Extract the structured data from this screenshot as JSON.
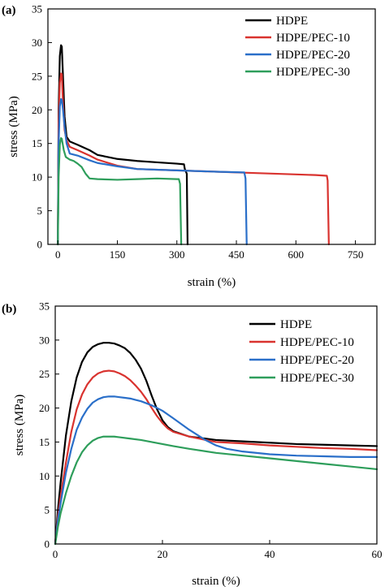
{
  "chart_data": [
    {
      "type": "line",
      "panel_label": "(a)",
      "xlabel": "strain (%)",
      "ylabel": "stress (MPa)",
      "xlim": [
        -25,
        800
      ],
      "ylim": [
        0,
        35
      ],
      "xticks": [
        0,
        150,
        300,
        450,
        600,
        750
      ],
      "yticks": [
        0,
        5,
        10,
        15,
        20,
        25,
        30,
        35
      ],
      "legend_position": "top-right",
      "grid": false,
      "series": [
        {
          "name": "HDPE",
          "color": "#000000",
          "x": [
            0,
            2,
            5,
            8,
            10,
            13,
            17,
            22,
            30,
            50,
            80,
            100,
            150,
            200,
            250,
            300,
            318,
            320,
            325,
            327
          ],
          "y": [
            0,
            20,
            28,
            29.6,
            29.4,
            25,
            19,
            16,
            15.3,
            14.8,
            14,
            13.3,
            12.7,
            12.4,
            12.2,
            12,
            11.9,
            11.2,
            10.5,
            0
          ]
        },
        {
          "name": "HDPE/PEC-10",
          "color": "#d9332f",
          "x": [
            0,
            2,
            5,
            8,
            10,
            13,
            17,
            22,
            30,
            50,
            80,
            100,
            150,
            200,
            300,
            400,
            500,
            600,
            650,
            678,
            680,
            683
          ],
          "y": [
            0,
            18,
            24,
            25.4,
            25.3,
            21,
            17,
            15.5,
            14.5,
            14,
            13.2,
            12.6,
            11.7,
            11.2,
            11,
            10.8,
            10.6,
            10.4,
            10.3,
            10.2,
            9.5,
            0
          ]
        },
        {
          "name": "HDPE/PEC-20",
          "color": "#2a6fc9",
          "x": [
            0,
            2,
            5,
            8,
            10,
            13,
            17,
            22,
            30,
            50,
            80,
            100,
            150,
            200,
            300,
            400,
            470,
            473,
            476
          ],
          "y": [
            0,
            15,
            20.5,
            21.6,
            21.5,
            20,
            17.5,
            15,
            13.5,
            13.2,
            12.5,
            12.1,
            11.6,
            11.2,
            11,
            10.8,
            10.7,
            9.8,
            0
          ]
        },
        {
          "name": "HDPE/PEC-30",
          "color": "#2e9e5b",
          "x": [
            0,
            2,
            5,
            8,
            10,
            15,
            20,
            30,
            40,
            50,
            60,
            70,
            80,
            100,
            150,
            200,
            250,
            300,
            305,
            308,
            311
          ],
          "y": [
            0,
            10,
            14.8,
            15.8,
            15.7,
            14,
            13,
            12.6,
            12.4,
            12,
            11.5,
            10.5,
            9.8,
            9.7,
            9.6,
            9.7,
            9.8,
            9.7,
            9.7,
            9,
            0
          ]
        }
      ]
    },
    {
      "type": "line",
      "panel_label": "(b)",
      "xlabel": "strain (%)",
      "ylabel": "stress (MPa)",
      "xlim": [
        0,
        60
      ],
      "ylim": [
        0,
        35
      ],
      "xticks": [
        0,
        20,
        40,
        60
      ],
      "yticks": [
        0,
        5,
        10,
        15,
        20,
        25,
        30,
        35
      ],
      "legend_position": "top-right",
      "grid": false,
      "series": [
        {
          "name": "HDPE",
          "color": "#000000",
          "x": [
            0,
            0.5,
            1,
            2,
            3,
            4,
            5,
            6,
            7,
            8,
            9,
            10,
            11,
            12,
            13,
            14,
            15,
            16,
            17,
            18,
            19,
            20,
            21,
            22,
            25,
            30,
            35,
            40,
            45,
            50,
            55,
            60
          ],
          "y": [
            0,
            5,
            9,
            16,
            21,
            24.5,
            26.8,
            28.2,
            29,
            29.4,
            29.6,
            29.6,
            29.5,
            29.2,
            28.8,
            28.1,
            27.1,
            25.8,
            24,
            21.8,
            19.8,
            18.2,
            17.2,
            16.6,
            15.8,
            15.3,
            15.1,
            14.9,
            14.7,
            14.6,
            14.5,
            14.4
          ]
        },
        {
          "name": "HDPE/PEC-10",
          "color": "#d9332f",
          "x": [
            0,
            0.5,
            1,
            2,
            3,
            4,
            5,
            6,
            7,
            8,
            9,
            10,
            11,
            12,
            13,
            14,
            15,
            16,
            17,
            18,
            19,
            20,
            21,
            22,
            25,
            30,
            35,
            40,
            45,
            50,
            55,
            60
          ],
          "y": [
            0,
            4,
            7,
            12,
            16.5,
            19.8,
            22,
            23.5,
            24.5,
            25.1,
            25.4,
            25.5,
            25.4,
            25.1,
            24.7,
            24.1,
            23.3,
            22.4,
            21.3,
            20,
            18.8,
            17.8,
            17,
            16.5,
            15.8,
            15,
            14.8,
            14.5,
            14.3,
            14.1,
            14,
            13.8
          ]
        },
        {
          "name": "HDPE/PEC-20",
          "color": "#2a6fc9",
          "x": [
            0,
            0.5,
            1,
            2,
            3,
            4,
            5,
            6,
            7,
            8,
            9,
            10,
            11,
            12,
            13,
            14,
            15,
            16,
            17,
            18,
            19,
            20,
            22,
            25,
            28,
            30,
            32,
            35,
            40,
            45,
            50,
            55,
            60
          ],
          "y": [
            0,
            3.5,
            6,
            10.5,
            14,
            16.8,
            18.6,
            19.9,
            20.8,
            21.3,
            21.6,
            21.7,
            21.7,
            21.6,
            21.5,
            21.4,
            21.2,
            21,
            20.7,
            20.4,
            20,
            19.6,
            18.5,
            16.8,
            15.3,
            14.5,
            14,
            13.6,
            13.2,
            13,
            12.9,
            12.8,
            12.8
          ]
        },
        {
          "name": "HDPE/PEC-30",
          "color": "#2e9e5b",
          "x": [
            0,
            0.5,
            1,
            2,
            3,
            4,
            5,
            6,
            7,
            8,
            9,
            10,
            11,
            12,
            14,
            16,
            18,
            20,
            22,
            25,
            30,
            35,
            40,
            45,
            50,
            55,
            60
          ],
          "y": [
            0,
            2.5,
            4.5,
            7.5,
            10,
            12,
            13.5,
            14.5,
            15.2,
            15.6,
            15.8,
            15.8,
            15.8,
            15.7,
            15.5,
            15.3,
            15,
            14.7,
            14.4,
            14,
            13.4,
            13,
            12.6,
            12.2,
            11.8,
            11.4,
            11
          ]
        }
      ]
    }
  ]
}
